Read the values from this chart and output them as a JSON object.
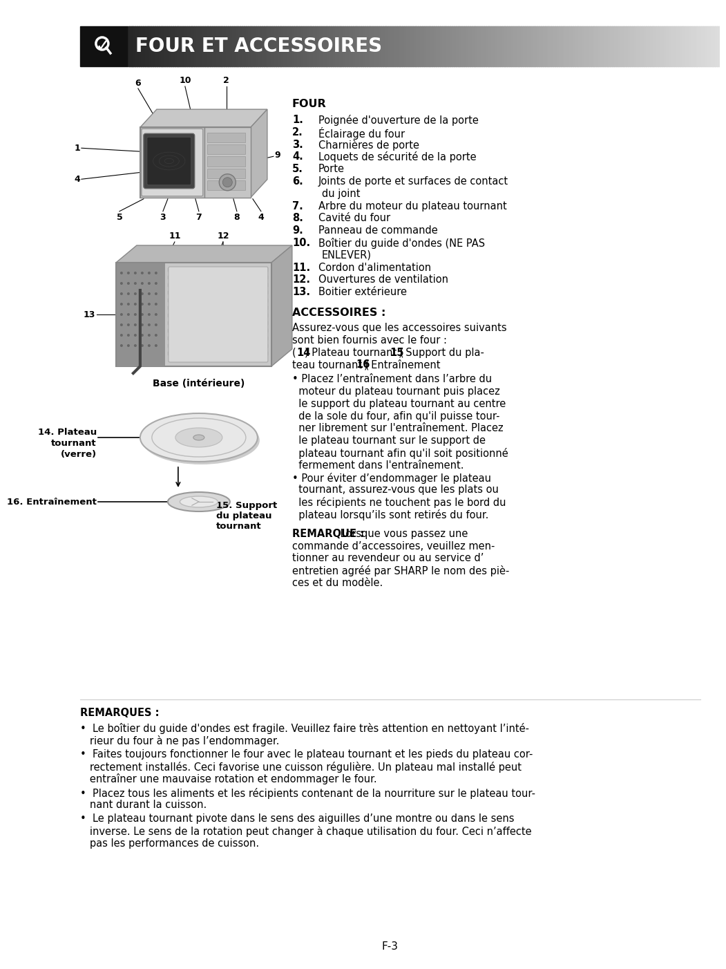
{
  "page_bg": "#ffffff",
  "header_text": "FOUR ET ACCESSOIRES",
  "title_four": "FOUR",
  "items_four": [
    {
      "num": "1.",
      "text": "Poignée d'ouverture de la porte"
    },
    {
      "num": "2.",
      "text": "Éclairage du four"
    },
    {
      "num": "3.",
      "text": "Charnières de porte"
    },
    {
      "num": "4.",
      "text": "Loquets de sécurité de la porte"
    },
    {
      "num": "5.",
      "text": "Porte"
    },
    {
      "num": "6.",
      "text_line1": "Joints de porte et surfaces de contact",
      "text_line2": "du joint"
    },
    {
      "num": "7.",
      "text": "Arbre du moteur du plateau tournant"
    },
    {
      "num": "8.",
      "text": "Cavité du four"
    },
    {
      "num": "9.",
      "text": "Panneau de commande"
    },
    {
      "num": "10.",
      "text_line1": "Boîtier du guide d'ondes (NE PAS",
      "text_line2": "ENLEVER)"
    },
    {
      "num": "11.",
      "text": "Cordon d'alimentation"
    },
    {
      "num": "12.",
      "text": "Ouvertures de ventilation"
    },
    {
      "num": "13.",
      "text": "Boitier extérieure"
    }
  ],
  "title_accessoires": "ACCESSOIRES :",
  "acc_line1": "Assurez-vous que les accessoires suivants",
  "acc_line2": "sont bien fournis avec le four :",
  "acc_line3a": "Plateau tournant (",
  "acc_line3b": "15",
  "acc_line3c": ") Support du pla-",
  "acc_line3pre": "(",
  "acc_line3num": "14",
  "acc_line4a": "teau tournant (",
  "acc_line4b": "16",
  "acc_line4c": ") Entraînement",
  "bullet1_lines": [
    "• Placez l’entraînement dans l’arbre du",
    "  moteur du plateau tournant puis placez",
    "  le support du plateau tournant au centre",
    "  de la sole du four, afin qu'il puisse tour-",
    "  ner librement sur l'entraînement. Placez",
    "  le plateau tournant sur le support de",
    "  plateau tournant afin qu'il soit positionné",
    "  fermement dans l'entraînement."
  ],
  "bullet2_lines": [
    "• Pour éviter d’endommager le plateau",
    "  tournant, assurez-vous que les plats ou",
    "  les récipients ne touchent pas le bord du",
    "  plateau lorsqu’ils sont retirés du four."
  ],
  "remarque_label": "REMARQUE :",
  "remarque_lines": [
    " Lorsque vous passez une",
    "commande d’accessoires, veuillez men-",
    "tionner au revendeur ou au service d’",
    "entretien agréé par SHARP le nom des piè-",
    "ces et du modèle."
  ],
  "remarques_title": "REMARQUES :",
  "bottom_bullet_lines": [
    [
      "•  Le boîtier du guide d'ondes est fragile. Veuillez faire très attention en nettoyant l’inté-",
      "   rieur du four à ne pas l’endommager."
    ],
    [
      "•  Faites toujours fonctionner le four avec le plateau tournant et les pieds du plateau cor-",
      "   rectement installés. Ceci favorise une cuisson régulière. Un plateau mal installé peut",
      "   entraîner une mauvaise rotation et endommager le four."
    ],
    [
      "•  Placez tous les aliments et les récipients contenant de la nourriture sur le plateau tour-",
      "   nant durant la cuisson."
    ],
    [
      "•  Le plateau tournant pivote dans le sens des aiguilles d’une montre ou dans le sens",
      "   inverse. Le sens de la rotation peut changer à chaque utilisation du four. Ceci n’affecte",
      "   pas les performances de cuisson."
    ]
  ],
  "page_number": "F-3",
  "base_label": "Base (intérieure)",
  "plateau_label": "14. Plateau",
  "plateau_label2": "tournant",
  "plateau_label3": "(verre)",
  "entrainement_label": "16. Entraînement",
  "support_label": "15. Support",
  "support_label2": "du plateau",
  "support_label3": "tournant"
}
